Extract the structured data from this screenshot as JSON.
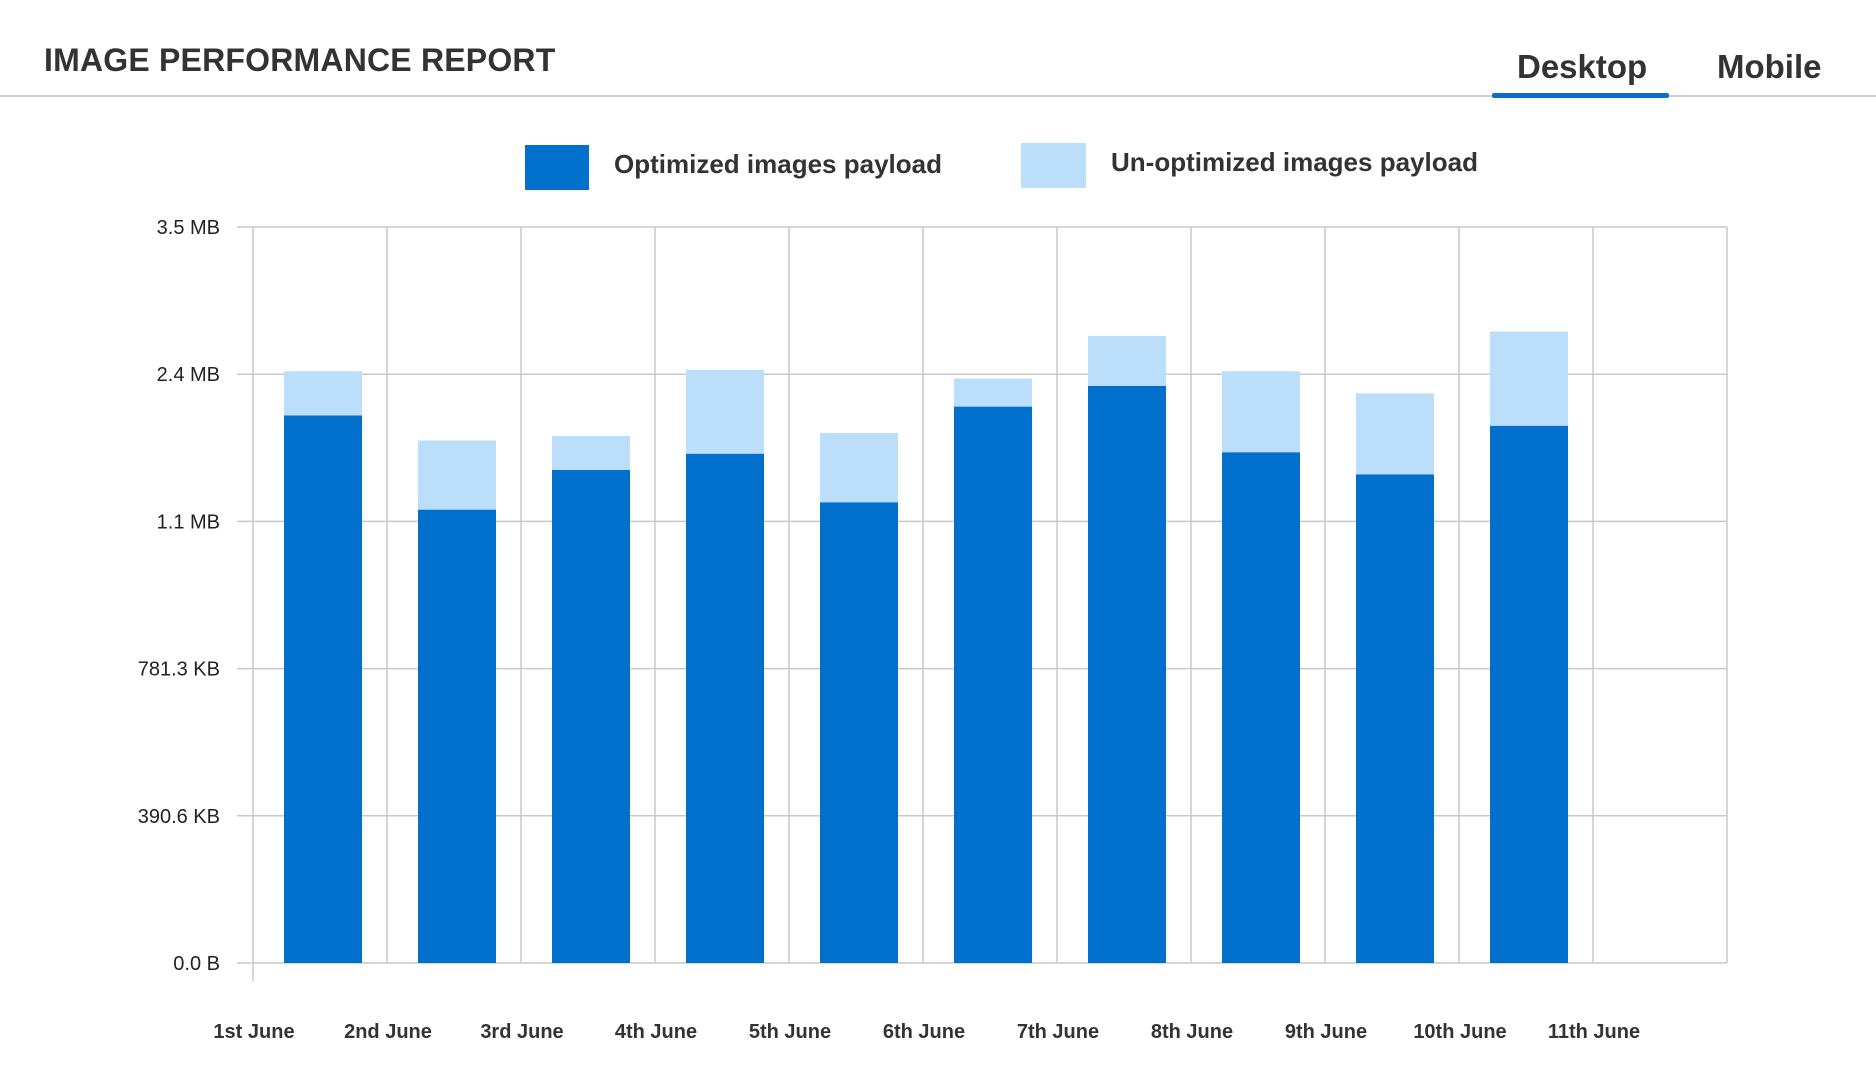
{
  "header": {
    "title": "IMAGE PERFORMANCE REPORT",
    "tabs": [
      {
        "label": "Desktop",
        "active": true
      },
      {
        "label": "Mobile",
        "active": false
      }
    ]
  },
  "colors": {
    "optimized": "#0070cc",
    "unoptimized": "#bbdefa",
    "accent": "#0b6fc9",
    "grid": "#c8c8c8"
  },
  "chart_data": {
    "type": "bar",
    "stacked": true,
    "title": "",
    "xlabel": "",
    "ylabel": "",
    "categories": [
      "1st June",
      "2nd June",
      "3rd June",
      "4th June",
      "5th June",
      "6th June",
      "7th June",
      "8th June",
      "9th June",
      "10th June",
      "11th June"
    ],
    "y_tick_labels": [
      "0.0 B",
      "390.6 KB",
      "781.3 KB",
      "1.1 MB",
      "2.4 MB",
      "3.5 MB"
    ],
    "legend_position": "top-center",
    "grid": true,
    "series": [
      {
        "name": "Optimized images payload",
        "values": [
          null,
          3.72,
          3.08,
          3.35,
          3.46,
          3.13,
          3.78,
          3.92,
          3.47,
          3.32,
          3.65
        ]
      },
      {
        "name": "Un-optimized images payload",
        "values": [
          null,
          0.3,
          0.47,
          0.23,
          0.57,
          0.47,
          0.19,
          0.34,
          0.55,
          0.55,
          0.64
        ]
      }
    ]
  }
}
